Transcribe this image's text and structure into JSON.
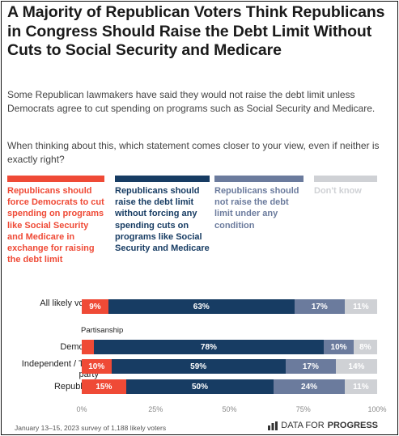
{
  "header": {
    "title": "A Majority of Republican Voters Think Republicans in Congress Should Raise the Debt Limit Without Cuts to Social Security and Medicare",
    "subtitle": "Some Republican lawmakers have said they would not raise the debt limit unless Democrats agree to cut spending on programs such as Social Security and Medicare.",
    "question": "When thinking about this, which statement comes closer to your view, even if neither is exactly right?"
  },
  "chart_data": {
    "type": "bar",
    "orientation": "horizontal",
    "stacked": true,
    "categories": [
      "All likely voters",
      "Democrat",
      "Independent / Third party",
      "Republican"
    ],
    "group_label": "Partisanship",
    "series": [
      {
        "name": "Republicans should force Democrats to cut spending on programs like Social Security and Medicare in exchange for raising the debt limit",
        "color": "#ef4a36",
        "values": [
          9,
          4,
          10,
          15
        ],
        "labels": [
          "9%",
          "",
          "10%",
          "15%"
        ]
      },
      {
        "name": "Republicans should raise the debt limit without forcing any spending cuts on programs like Social Security and Medicare",
        "color": "#173c63",
        "values": [
          63,
          78,
          59,
          50
        ],
        "labels": [
          "63%",
          "78%",
          "59%",
          "50%"
        ]
      },
      {
        "name": "Republicans should not raise the debt limit under any condition",
        "color": "#6b7b9d",
        "values": [
          17,
          10,
          17,
          24
        ],
        "labels": [
          "17%",
          "10%",
          "17%",
          "24%"
        ]
      },
      {
        "name": "Don't know",
        "color": "#cfd1d5",
        "values": [
          11,
          8,
          14,
          11
        ],
        "labels": [
          "11%",
          "8%",
          "14%",
          "11%"
        ]
      }
    ],
    "xlim": [
      0,
      100
    ],
    "ticks": [
      "0%",
      "25%",
      "50%",
      "75%",
      "100%"
    ]
  },
  "row_labels": {
    "all": "All likely voters",
    "dem": "Democrat",
    "ind": "Independent / Third party",
    "rep": "Republican"
  },
  "footer": {
    "note": "January 13–15, 2023 survey of 1,188 likely voters",
    "brand_prefix": "DATA FOR",
    "brand_name": "PROGRESS"
  }
}
